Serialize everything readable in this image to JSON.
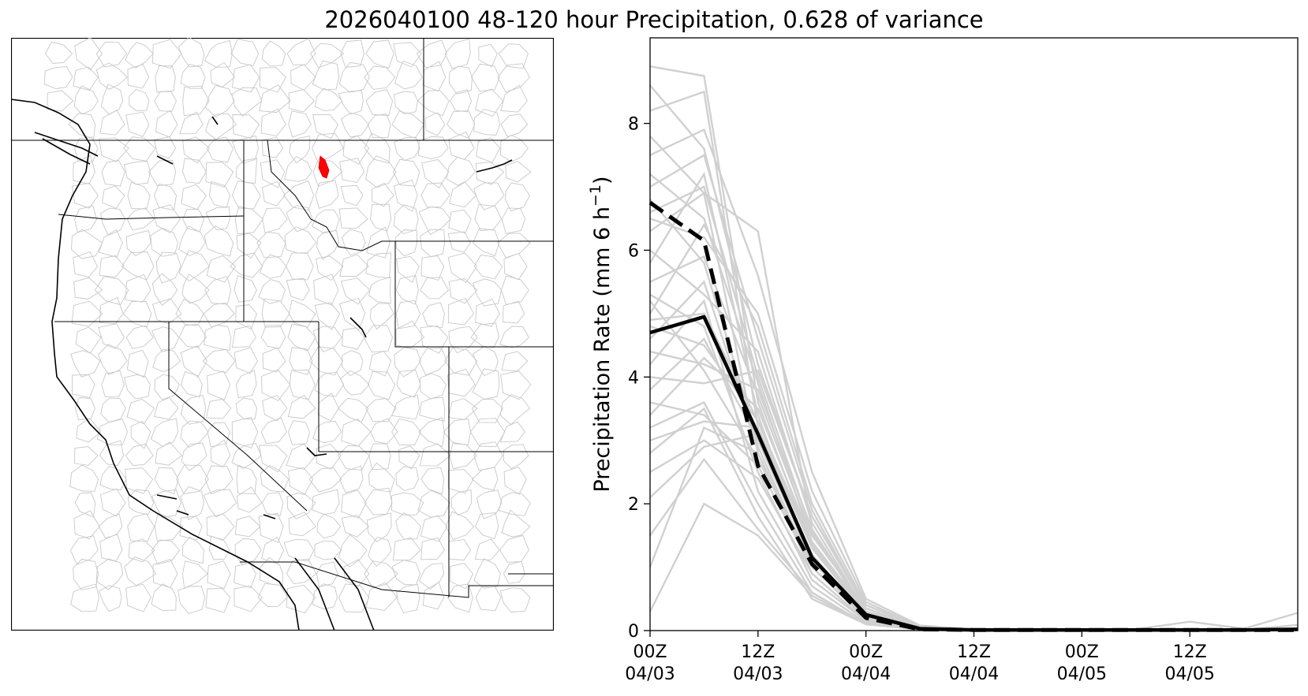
{
  "title": "2026040100 48-120 hour Precipitation, 0.628 of variance",
  "colors": {
    "ensemble": "#d0d0d0",
    "mean": "#000000",
    "highlight_basin": "#ff0000",
    "basin_lines": "#c8c8c8",
    "borders": "#000000"
  },
  "map": {
    "region": "Western United States",
    "layers": [
      "hydrologic-basins",
      "state-borders",
      "coastline",
      "lakes",
      "highlighted-basin"
    ]
  },
  "chart_data": {
    "type": "line",
    "ylabel": "Precipitation Rate (mm 6 h",
    "ylabel_sup": "−1",
    "ylabel_end": ")",
    "ylim": [
      0,
      9.35
    ],
    "xlim": [
      0,
      18
    ],
    "yticks": [
      0,
      2,
      4,
      6,
      8
    ],
    "xticks": [
      {
        "x": 0,
        "line1": "00Z",
        "line2": "04/03"
      },
      {
        "x": 3,
        "line1": "12Z",
        "line2": "04/03"
      },
      {
        "x": 6,
        "line1": "00Z",
        "line2": "04/04"
      },
      {
        "x": 9,
        "line1": "12Z",
        "line2": "04/04"
      },
      {
        "x": 12,
        "line1": "00Z",
        "line2": "04/05"
      },
      {
        "x": 15,
        "line1": "12Z",
        "line2": "04/05"
      }
    ],
    "x": [
      0,
      1.5,
      3,
      4.5,
      6,
      7.5,
      9,
      10.5,
      12,
      13.5,
      15,
      16.5,
      18
    ],
    "mean_solid": [
      4.7,
      4.95,
      3.1,
      1.15,
      0.25,
      0.03,
      0.01,
      0.01,
      0.01,
      0.01,
      0.01,
      0.01,
      0.02
    ],
    "mean_dashed": [
      6.75,
      6.15,
      2.6,
      1.05,
      0.2,
      0.02,
      0.01,
      0.01,
      0.01,
      0.01,
      0.01,
      0.01,
      0.01
    ],
    "ensemble": [
      [
        8.9,
        8.75,
        3.6,
        1.3,
        0.3,
        0.05,
        0.02,
        0.01,
        0.01,
        0.01,
        0.01,
        0.01,
        0.01
      ],
      [
        8.6,
        7.6,
        4.2,
        1.8,
        0.4,
        0.06,
        0.02,
        0.01,
        0.01,
        0.01,
        0.01,
        0.01,
        0.01
      ],
      [
        8.2,
        8.5,
        3.2,
        1.1,
        0.2,
        0.03,
        0.01,
        0.01,
        0.01,
        0.01,
        0.01,
        0.01,
        0.01
      ],
      [
        7.8,
        6.9,
        6.3,
        1.6,
        0.25,
        0.04,
        0.01,
        0.01,
        0.01,
        0.01,
        0.01,
        0.01,
        0.01
      ],
      [
        7.5,
        7.9,
        5.6,
        2.5,
        0.5,
        0.08,
        0.02,
        0.01,
        0.01,
        0.01,
        0.01,
        0.01,
        0.01
      ],
      [
        7.2,
        6.5,
        3.9,
        1.4,
        0.3,
        0.05,
        0.02,
        0.01,
        0.01,
        0.01,
        0.01,
        0.01,
        0.01
      ],
      [
        7.0,
        7.5,
        4.6,
        1.9,
        0.35,
        0.05,
        0.02,
        0.01,
        0.01,
        0.01,
        0.01,
        0.01,
        0.01
      ],
      [
        6.8,
        5.8,
        3.0,
        1.2,
        0.2,
        0.03,
        0.01,
        0.01,
        0.01,
        0.01,
        0.01,
        0.01,
        0.01
      ],
      [
        6.5,
        6.2,
        5.0,
        2.2,
        0.45,
        0.06,
        0.02,
        0.01,
        0.01,
        0.01,
        0.01,
        0.01,
        0.01
      ],
      [
        6.3,
        6.9,
        2.8,
        0.9,
        0.15,
        0.02,
        0.01,
        0.01,
        0.01,
        0.01,
        0.01,
        0.01,
        0.01
      ],
      [
        6.0,
        5.3,
        4.4,
        1.7,
        0.3,
        0.05,
        0.01,
        0.01,
        0.01,
        0.01,
        0.01,
        0.01,
        0.01
      ],
      [
        5.8,
        7.2,
        3.4,
        1.0,
        0.2,
        0.03,
        0.01,
        0.01,
        0.01,
        0.01,
        0.01,
        0.01,
        0.01
      ],
      [
        5.5,
        5.9,
        3.7,
        1.5,
        0.35,
        0.04,
        0.01,
        0.01,
        0.01,
        0.01,
        0.01,
        0.01,
        0.01
      ],
      [
        5.3,
        4.8,
        2.5,
        0.8,
        0.15,
        0.02,
        0.01,
        0.01,
        0.01,
        0.01,
        0.01,
        0.01,
        0.01
      ],
      [
        5.0,
        6.4,
        4.8,
        2.0,
        0.4,
        0.06,
        0.02,
        0.01,
        0.01,
        0.01,
        0.01,
        0.01,
        0.01
      ],
      [
        4.8,
        4.5,
        3.3,
        1.3,
        0.25,
        0.04,
        0.01,
        0.01,
        0.01,
        0.01,
        0.01,
        0.01,
        0.01
      ],
      [
        4.6,
        5.5,
        2.9,
        1.0,
        0.2,
        0.03,
        0.01,
        0.01,
        0.01,
        0.01,
        0.01,
        0.01,
        0.01
      ],
      [
        4.4,
        4.2,
        3.8,
        1.6,
        0.3,
        0.05,
        0.01,
        0.01,
        0.01,
        0.01,
        0.01,
        0.01,
        0.01
      ],
      [
        4.2,
        5.2,
        2.2,
        0.7,
        0.12,
        0.02,
        0.01,
        0.01,
        0.01,
        0.01,
        0.01,
        0.01,
        0.01
      ],
      [
        4.0,
        3.9,
        4.1,
        1.8,
        0.35,
        0.05,
        0.01,
        0.01,
        0.01,
        0.01,
        0.01,
        0.01,
        0.01
      ],
      [
        3.8,
        4.6,
        3.0,
        1.1,
        0.2,
        0.03,
        0.01,
        0.01,
        0.01,
        0.01,
        0.01,
        0.01,
        0.01
      ],
      [
        3.6,
        3.4,
        2.6,
        1.0,
        0.18,
        0.03,
        0.01,
        0.01,
        0.01,
        0.01,
        0.01,
        0.01,
        0.01
      ],
      [
        3.4,
        4.3,
        3.5,
        1.4,
        0.3,
        0.04,
        0.01,
        0.01,
        0.01,
        0.01,
        0.01,
        0.01,
        0.01
      ],
      [
        3.2,
        3.6,
        2.0,
        0.6,
        0.1,
        0.02,
        0.01,
        0.01,
        0.01,
        0.01,
        0.01,
        0.01,
        0.01
      ],
      [
        3.0,
        3.3,
        3.2,
        1.3,
        0.25,
        0.04,
        0.01,
        0.01,
        0.01,
        0.01,
        0.01,
        0.01,
        0.01
      ],
      [
        2.8,
        3.5,
        1.8,
        0.5,
        0.1,
        0.02,
        0.01,
        0.01,
        0.01,
        0.01,
        0.01,
        0.01,
        0.01
      ],
      [
        2.5,
        3.0,
        2.4,
        0.9,
        0.15,
        0.03,
        0.01,
        0.01,
        0.01,
        0.01,
        0.01,
        0.01,
        0.01
      ],
      [
        2.1,
        2.9,
        3.1,
        1.2,
        0.22,
        0.03,
        0.01,
        0.01,
        0.01,
        0.01,
        0.01,
        0.01,
        0.01
      ],
      [
        1.5,
        2.7,
        1.6,
        0.6,
        0.1,
        0.02,
        0.01,
        0.01,
        0.01,
        0.01,
        0.01,
        0.01,
        0.01
      ],
      [
        1.0,
        3.2,
        2.8,
        1.0,
        0.2,
        0.03,
        0.01,
        0.01,
        0.01,
        0.01,
        0.01,
        0.01,
        0.01
      ],
      [
        0.3,
        2.0,
        1.5,
        0.55,
        0.1,
        0.02,
        0.01,
        0.01,
        0.01,
        0.01,
        0.01,
        0.01,
        0.01
      ],
      [
        4.9,
        5.0,
        3.3,
        1.35,
        0.27,
        0.04,
        0.02,
        0.02,
        0.02,
        0.02,
        0.14,
        0.03,
        0.28
      ],
      [
        5.2,
        4.1,
        2.7,
        1.1,
        0.22,
        0.03,
        0.01,
        0.01,
        0.01,
        0.01,
        0.02,
        0.01,
        0.09
      ],
      [
        6.6,
        7.0,
        4.0,
        1.55,
        0.3,
        0.05,
        0.01,
        0.01,
        0.01,
        0.01,
        0.01,
        0.01,
        0.01
      ]
    ]
  }
}
